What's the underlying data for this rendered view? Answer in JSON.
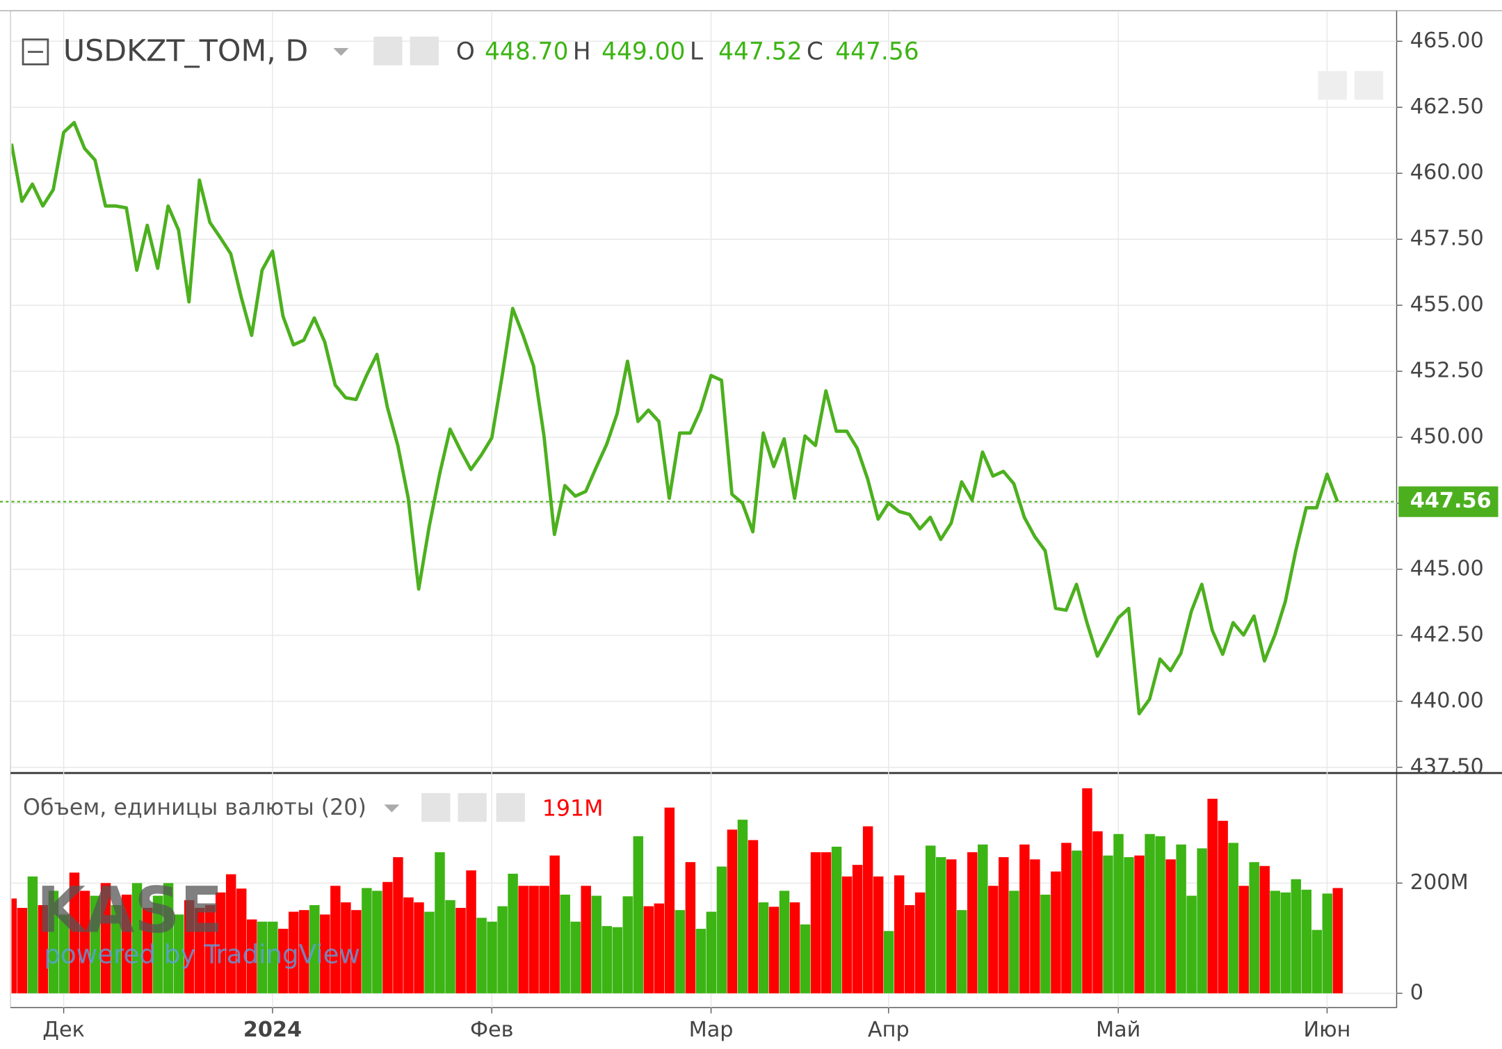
{
  "chart_data": [
    {
      "type": "line",
      "title": "USDKZT_TOM, D",
      "ohlc": [
        {
          "name": "O",
          "label": "448.70"
        },
        {
          "name": "H",
          "label": "449.00"
        },
        {
          "name": "L",
          "label": "447.52"
        },
        {
          "name": "C",
          "label": "447.56"
        }
      ],
      "color": "#4cb01e",
      "categories": [
        null,
        null,
        null,
        null,
        null,
        "Дек",
        null,
        null,
        null,
        null,
        null,
        null,
        null,
        null,
        null,
        null,
        null,
        null,
        null,
        null,
        null,
        null,
        null,
        null,
        null,
        "2024",
        null,
        null,
        null,
        null,
        null,
        null,
        null,
        null,
        null,
        null,
        null,
        null,
        null,
        null,
        null,
        null,
        null,
        null,
        null,
        null,
        "Фев",
        null,
        null,
        null,
        null,
        null,
        null,
        null,
        null,
        null,
        null,
        null,
        null,
        null,
        null,
        null,
        null,
        null,
        null,
        null,
        null,
        "Мар",
        null,
        null,
        null,
        null,
        null,
        null,
        null,
        null,
        null,
        null,
        null,
        null,
        null,
        null,
        null,
        null,
        "Апр",
        null,
        null,
        null,
        null,
        null,
        null,
        null,
        null,
        null,
        null,
        null,
        null,
        null,
        null,
        null,
        null,
        null,
        null,
        null,
        null,
        null,
        "Май",
        null,
        null,
        null,
        null,
        null,
        null,
        null,
        null,
        null,
        null,
        null,
        null,
        null,
        null,
        null,
        null,
        null,
        null,
        null,
        "Июн",
        null
      ],
      "values": [
        461.12,
        458.94,
        459.59,
        458.76,
        459.38,
        461.55,
        461.92,
        460.94,
        460.5,
        458.76,
        458.76,
        458.69,
        456.33,
        458.03,
        456.4,
        458.76,
        457.85,
        455.13,
        459.74,
        458.14,
        457.56,
        456.95,
        455.31,
        453.86,
        456.33,
        457.05,
        454.59,
        453.5,
        453.68,
        454.52,
        453.61,
        451.98,
        451.5,
        451.43,
        452.34,
        453.14,
        451.14,
        449.69,
        447.69,
        444.25,
        446.61,
        448.6,
        450.31,
        449.51,
        448.78,
        449.33,
        449.98,
        452.34,
        454.88,
        453.86,
        452.7,
        450.05,
        446.32,
        448.17,
        447.77,
        447.95,
        448.86,
        449.73,
        450.89,
        452.88,
        450.6,
        451.03,
        450.6,
        447.69,
        450.16,
        450.16,
        451.03,
        452.34,
        452.16,
        447.84,
        447.51,
        446.42,
        450.16,
        448.89,
        449.94,
        447.69,
        450.05,
        449.69,
        451.76,
        450.23,
        450.23,
        449.58,
        448.42,
        446.9,
        447.51,
        447.19,
        447.08,
        446.53,
        446.97,
        446.13,
        446.75,
        448.31,
        447.62,
        449.44,
        448.53,
        448.71,
        448.24,
        446.97,
        446.24,
        445.7,
        443.52,
        443.45,
        444.43,
        442.98,
        441.71,
        442.43,
        443.16,
        443.52,
        439.53,
        440.08,
        441.6,
        441.16,
        441.82,
        443.41,
        444.43,
        442.69,
        441.78,
        442.98,
        442.51,
        443.23,
        441.53,
        442.51,
        443.78,
        445.7,
        447.33,
        447.33,
        448.6,
        447.56
      ],
      "ylim": [
        437.32,
        466.12
      ],
      "yticks": [
        {
          "value": 437.5,
          "label": "437.50"
        },
        {
          "value": 440,
          "label": "440.00"
        },
        {
          "value": 442.5,
          "label": "442.50"
        },
        {
          "value": 445,
          "label": "445.00"
        },
        {
          "value": 447.5,
          "label": "447.50"
        },
        {
          "value": 450,
          "label": "450.00"
        },
        {
          "value": 452.5,
          "label": "452.50"
        },
        {
          "value": 455,
          "label": "455.00"
        },
        {
          "value": 457.5,
          "label": "457.50"
        },
        {
          "value": 460,
          "label": "460.00"
        },
        {
          "value": 462.5,
          "label": "462.50"
        },
        {
          "value": 465,
          "label": "465.00"
        }
      ],
      "grid": true,
      "watermark": "KASE",
      "watermark_sub": "powered by TradingView"
    },
    {
      "type": "bar",
      "title": "Объем, единицы валюты (20)",
      "annotation": "191M",
      "values": [
        172000000,
        155000000,
        212000000,
        160000000,
        186000000,
        143000000,
        219000000,
        186000000,
        177000000,
        200000000,
        160000000,
        179000000,
        200000000,
        155000000,
        177000000,
        200000000,
        143000000,
        169000000,
        155000000,
        160000000,
        183000000,
        216000000,
        190000000,
        134000000,
        130000000,
        130000000,
        117000000,
        148000000,
        151000000,
        160000000,
        143000000,
        195000000,
        165000000,
        151000000,
        191000000,
        186000000,
        202000000,
        247000000,
        174000000,
        165000000,
        148000000,
        256000000,
        169000000,
        155000000,
        223000000,
        137000000,
        130000000,
        158000000,
        217000000,
        195000000,
        195000000,
        195000000,
        250000000,
        179000000,
        130000000,
        195000000,
        177000000,
        122000000,
        120000000,
        176000000,
        285000000,
        158000000,
        163000000,
        337000000,
        151000000,
        238000000,
        117000000,
        148000000,
        230000000,
        297000000,
        315000000,
        278000000,
        165000000,
        157000000,
        186000000,
        165000000,
        125000000,
        256000000,
        256000000,
        266000000,
        212000000,
        233000000,
        303000000,
        212000000,
        113000000,
        214000000,
        160000000,
        183000000,
        268000000,
        247000000,
        243000000,
        151000000,
        256000000,
        270000000,
        195000000,
        247000000,
        186000000,
        270000000,
        243000000,
        179000000,
        221000000,
        273000000,
        259000000,
        372000000,
        294000000,
        250000000,
        289000000,
        247000000,
        250000000,
        289000000,
        285000000,
        243000000,
        270000000,
        177000000,
        263000000,
        353000000,
        313000000,
        273000000,
        195000000,
        238000000,
        231000000,
        186000000,
        183000000,
        207000000,
        188000000,
        115000000,
        181000000,
        191000000
      ],
      "colors": [
        "#ff0000",
        "#ff0000",
        "#3cb414",
        "#ff0000",
        "#3cb414",
        "#3cb414",
        "#ff0000",
        "#ff0000",
        "#3cb414",
        "#ff0000",
        "#3cb414",
        "#ff0000",
        "#3cb414",
        "#ff0000",
        "#3cb414",
        "#3cb414",
        "#3cb414",
        "#ff0000",
        "#ff0000",
        "#ff0000",
        "#ff0000",
        "#ff0000",
        "#ff0000",
        "#ff0000",
        "#3cb414",
        "#3cb414",
        "#ff0000",
        "#ff0000",
        "#ff0000",
        "#3cb414",
        "#ff0000",
        "#ff0000",
        "#ff0000",
        "#ff0000",
        "#3cb414",
        "#3cb414",
        "#ff0000",
        "#ff0000",
        "#ff0000",
        "#ff0000",
        "#3cb414",
        "#3cb414",
        "#3cb414",
        "#ff0000",
        "#ff0000",
        "#3cb414",
        "#3cb414",
        "#3cb414",
        "#3cb414",
        "#ff0000",
        "#ff0000",
        "#ff0000",
        "#ff0000",
        "#3cb414",
        "#3cb414",
        "#ff0000",
        "#3cb414",
        "#3cb414",
        "#3cb414",
        "#3cb414",
        "#3cb414",
        "#ff0000",
        "#ff0000",
        "#ff0000",
        "#3cb414",
        "#ff0000",
        "#3cb414",
        "#3cb414",
        "#3cb414",
        "#ff0000",
        "#3cb414",
        "#ff0000",
        "#3cb414",
        "#ff0000",
        "#3cb414",
        "#ff0000",
        "#3cb414",
        "#ff0000",
        "#ff0000",
        "#3cb414",
        "#ff0000",
        "#ff0000",
        "#ff0000",
        "#ff0000",
        "#3cb414",
        "#ff0000",
        "#ff0000",
        "#ff0000",
        "#3cb414",
        "#3cb414",
        "#ff0000",
        "#3cb414",
        "#ff0000",
        "#3cb414",
        "#ff0000",
        "#ff0000",
        "#3cb414",
        "#ff0000",
        "#ff0000",
        "#3cb414",
        "#ff0000",
        "#ff0000",
        "#3cb414",
        "#ff0000",
        "#ff0000",
        "#3cb414",
        "#3cb414",
        "#3cb414",
        "#ff0000",
        "#3cb414",
        "#3cb414",
        "#ff0000",
        "#3cb414",
        "#3cb414",
        "#3cb414",
        "#ff0000",
        "#ff0000",
        "#3cb414",
        "#ff0000",
        "#3cb414",
        "#ff0000",
        "#3cb414",
        "#3cb414",
        "#3cb414",
        "#3cb414",
        "#3cb414",
        "#3cb414",
        "#ff0000"
      ],
      "ylim": [
        -26000000,
        398000000
      ],
      "yticks": [
        0,
        {
          "value": 200000000,
          "label": "200M"
        }
      ]
    }
  ]
}
